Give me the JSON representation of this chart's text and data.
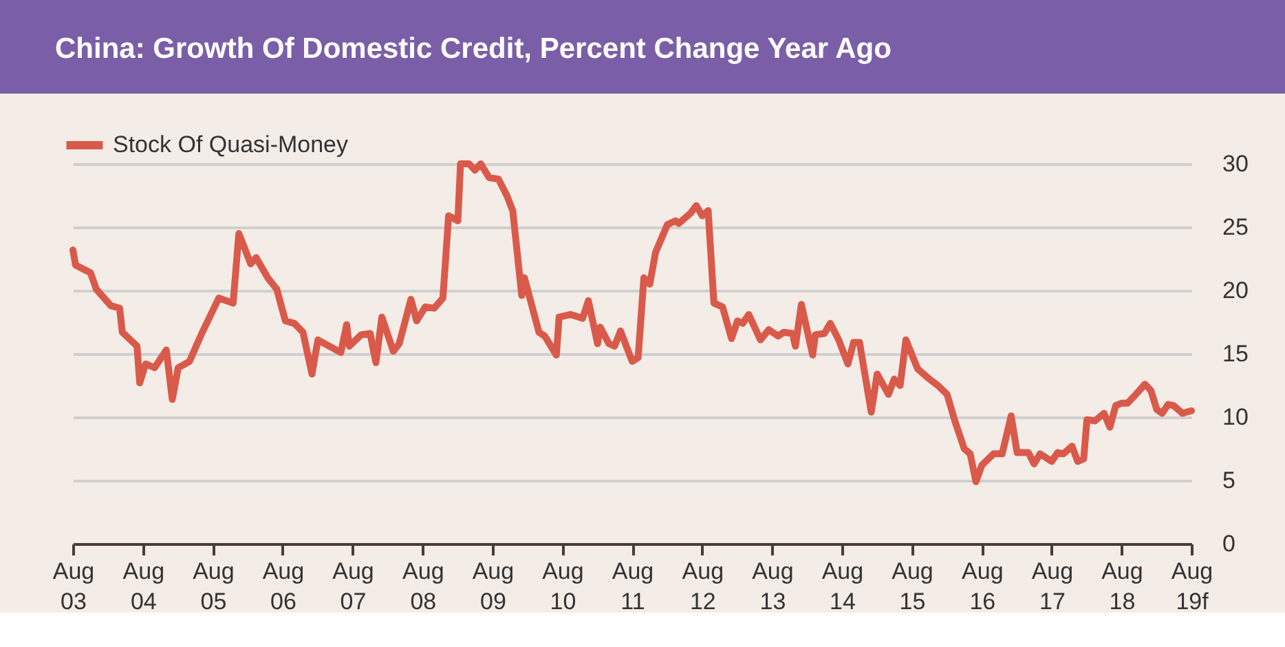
{
  "chart_data": {
    "type": "line",
    "title": "China:  Growth Of Domestic Credit, Percent Change Year Ago",
    "legend": "top left",
    "grid": "y",
    "marker": "none",
    "line_style": "solid",
    "xlim": [
      "2003-08-01",
      "2019-08-01"
    ],
    "ylim": [
      0,
      30
    ],
    "yticks": [
      0,
      5,
      10,
      15,
      20,
      25,
      30
    ],
    "xticks": [
      {
        "value": "2003-08-01",
        "label": "Aug 03"
      },
      {
        "value": "2004-08-01",
        "label": "Aug 04"
      },
      {
        "value": "2005-08-01",
        "label": "Aug 05"
      },
      {
        "value": "2006-08-01",
        "label": "Aug 06"
      },
      {
        "value": "2007-08-01",
        "label": "Aug 07"
      },
      {
        "value": "2008-08-01",
        "label": "Aug 08"
      },
      {
        "value": "2009-08-01",
        "label": "Aug 09"
      },
      {
        "value": "2010-08-01",
        "label": "Aug 10"
      },
      {
        "value": "2011-08-01",
        "label": "Aug 11"
      },
      {
        "value": "2012-08-01",
        "label": "Aug 12"
      },
      {
        "value": "2013-08-01",
        "label": "Aug 13"
      },
      {
        "value": "2014-08-01",
        "label": "Aug 14"
      },
      {
        "value": "2015-08-01",
        "label": "Aug 15"
      },
      {
        "value": "2016-08-01",
        "label": "Aug 16"
      },
      {
        "value": "2017-08-01",
        "label": "Aug 17"
      },
      {
        "value": "2018-08-01",
        "label": "Aug 18"
      },
      {
        "value": "2019-08-01",
        "label": "Aug 19f"
      }
    ],
    "series": [
      {
        "name": "Stock Of Quasi-Money",
        "color": "#d95a4a",
        "x": [
          "2003-08-01",
          "2003-08-15",
          "2003-11-01",
          "2003-12-01",
          "2004-02-15",
          "2004-04-01",
          "2004-04-15",
          "2004-07-01",
          "2004-07-15",
          "2004-08-15",
          "2004-10-01",
          "2004-12-01",
          "2005-01-01",
          "2005-02-01",
          "2005-04-01",
          "2005-06-01",
          "2005-09-01",
          "2005-11-15",
          "2005-12-15",
          "2006-02-15",
          "2006-03-15",
          "2006-05-15",
          "2006-07-01",
          "2006-08-15",
          "2006-10-01",
          "2006-11-15",
          "2007-01-01",
          "2007-02-01",
          "2007-06-01",
          "2007-07-01",
          "2007-07-15",
          "2007-09-15",
          "2007-11-01",
          "2007-12-01",
          "2008-01-01",
          "2008-03-01",
          "2008-04-01",
          "2008-06-01",
          "2008-07-01",
          "2008-08-15",
          "2008-10-01",
          "2008-11-15",
          "2008-12-15",
          "2009-02-01",
          "2009-02-15",
          "2009-04-01",
          "2009-05-01",
          "2009-06-01",
          "2009-07-15",
          "2009-09-01",
          "2009-10-15",
          "2009-11-15",
          "2010-01-01",
          "2010-01-15",
          "2010-04-01",
          "2010-05-01",
          "2010-07-01",
          "2010-07-15",
          "2010-09-15",
          "2010-11-15",
          "2010-12-15",
          "2011-02-01",
          "2011-02-15",
          "2011-04-01",
          "2011-05-01",
          "2011-06-01",
          "2011-08-01",
          "2011-09-01",
          "2011-10-01",
          "2011-11-01",
          "2011-12-01",
          "2012-02-01",
          "2012-03-15",
          "2012-04-01",
          "2012-06-01",
          "2012-07-01",
          "2012-08-01",
          "2012-09-01",
          "2012-10-01",
          "2012-11-15",
          "2013-01-01",
          "2013-02-01",
          "2013-03-01",
          "2013-04-01",
          "2013-06-01",
          "2013-07-15",
          "2013-09-01",
          "2013-10-01",
          "2013-11-15",
          "2013-12-01",
          "2014-01-01",
          "2014-03-01",
          "2014-03-15",
          "2014-05-01",
          "2014-06-01",
          "2014-07-15",
          "2014-09-01",
          "2014-10-01",
          "2014-11-01",
          "2015-01-01",
          "2015-02-01",
          "2015-04-01",
          "2015-05-01",
          "2015-06-01",
          "2015-07-01",
          "2015-09-01",
          "2015-11-01",
          "2015-12-15",
          "2016-02-01",
          "2016-03-15",
          "2016-05-01",
          "2016-06-01",
          "2016-07-01",
          "2016-08-01",
          "2016-10-01",
          "2016-11-15",
          "2017-01-01",
          "2017-02-01",
          "2017-04-01",
          "2017-05-01",
          "2017-06-01",
          "2017-08-01",
          "2017-09-01",
          "2017-10-01",
          "2017-11-15",
          "2017-12-15",
          "2018-01-15",
          "2018-02-01",
          "2018-03-15",
          "2018-05-01",
          "2018-06-01",
          "2018-07-01",
          "2018-08-01",
          "2018-09-01",
          "2018-10-15",
          "2018-12-01",
          "2019-01-01",
          "2019-02-01",
          "2019-03-01",
          "2019-04-01",
          "2019-05-01",
          "2019-06-15",
          "2019-08-01"
        ],
        "values": [
          23.2,
          22.0,
          21.4,
          20.1,
          18.8,
          18.6,
          16.7,
          15.6,
          12.7,
          14.2,
          13.9,
          15.3,
          11.4,
          13.9,
          14.4,
          16.5,
          19.4,
          19.0,
          24.5,
          22.1,
          22.6,
          21.0,
          20.1,
          17.6,
          17.4,
          16.7,
          13.4,
          16.1,
          15.1,
          17.3,
          15.6,
          16.5,
          16.6,
          14.3,
          17.9,
          15.2,
          15.8,
          19.3,
          17.6,
          18.7,
          18.6,
          19.4,
          25.9,
          25.5,
          30.0,
          30.0,
          29.5,
          30.0,
          28.9,
          28.8,
          27.5,
          26.3,
          19.6,
          21.0,
          16.7,
          16.4,
          14.9,
          17.9,
          18.1,
          17.8,
          19.2,
          15.8,
          17.1,
          15.8,
          15.6,
          16.8,
          14.4,
          14.7,
          21.0,
          20.5,
          23.0,
          25.2,
          25.5,
          25.3,
          26.1,
          26.7,
          25.9,
          26.3,
          19.0,
          18.7,
          16.2,
          17.6,
          17.4,
          18.1,
          16.1,
          16.9,
          16.4,
          16.7,
          16.6,
          15.6,
          18.9,
          14.9,
          16.5,
          16.6,
          17.4,
          16.1,
          14.2,
          15.9,
          15.9,
          10.4,
          13.4,
          11.8,
          13.0,
          12.5,
          16.1,
          13.8,
          13.0,
          12.5,
          11.8,
          9.6,
          7.5,
          7.1,
          4.9,
          6.2,
          7.1,
          7.1,
          10.1,
          7.2,
          7.2,
          6.3,
          7.1,
          6.5,
          7.2,
          7.1,
          7.7,
          6.5,
          6.7,
          9.8,
          9.7,
          10.3,
          9.2,
          10.9,
          11.1,
          11.1,
          11.8,
          12.6,
          12.1,
          10.6,
          10.3,
          11.0,
          10.9,
          10.3,
          10.5
        ]
      }
    ]
  }
}
